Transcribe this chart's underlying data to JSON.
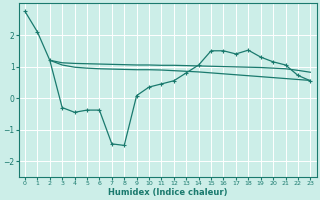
{
  "xlabel": "Humidex (Indice chaleur)",
  "background_color": "#cceee8",
  "line_color": "#1a7a6e",
  "grid_color": "#ffffff",
  "ylim": [
    -2.5,
    3.0
  ],
  "xlim": [
    -0.5,
    23.5
  ],
  "x_ticks": [
    0,
    1,
    2,
    3,
    4,
    5,
    6,
    7,
    8,
    9,
    10,
    11,
    12,
    13,
    14,
    15,
    16,
    17,
    18,
    19,
    20,
    21,
    22,
    23
  ],
  "y_ticks": [
    -2,
    -1,
    0,
    1,
    2
  ],
  "curve1_x": [
    0,
    1,
    2,
    3,
    4,
    5,
    6,
    7,
    8,
    9,
    10,
    11,
    12,
    13,
    14,
    15,
    16,
    17,
    18,
    19,
    20,
    21,
    22,
    23
  ],
  "curve1_y": [
    2.75,
    2.1,
    1.2,
    -0.3,
    -0.45,
    -0.38,
    -0.38,
    -1.45,
    -1.5,
    0.08,
    0.35,
    0.45,
    0.55,
    0.8,
    1.05,
    1.5,
    1.5,
    1.4,
    1.52,
    1.3,
    1.15,
    1.05,
    0.72,
    0.55
  ],
  "curve2_x": [
    2,
    3,
    4,
    5,
    6,
    7,
    8,
    9,
    10,
    11,
    12,
    13,
    14,
    15,
    16,
    17,
    18,
    19,
    20,
    21,
    22,
    23
  ],
  "curve2_y": [
    1.2,
    1.12,
    1.1,
    1.09,
    1.08,
    1.07,
    1.06,
    1.05,
    1.05,
    1.04,
    1.04,
    1.03,
    1.02,
    1.01,
    1.0,
    0.99,
    0.98,
    0.97,
    0.95,
    0.93,
    0.88,
    0.82
  ],
  "curve3_x": [
    2,
    3,
    4,
    5,
    6,
    7,
    8,
    9,
    10,
    11,
    12,
    13,
    14,
    15,
    16,
    17,
    18,
    19,
    20,
    21,
    22,
    23
  ],
  "curve3_y": [
    1.2,
    1.05,
    0.98,
    0.95,
    0.93,
    0.92,
    0.91,
    0.9,
    0.9,
    0.89,
    0.87,
    0.85,
    0.83,
    0.8,
    0.77,
    0.74,
    0.71,
    0.68,
    0.65,
    0.62,
    0.59,
    0.56
  ]
}
